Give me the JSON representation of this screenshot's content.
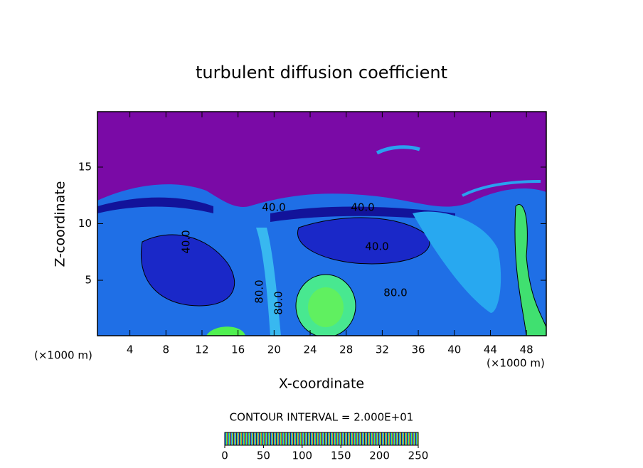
{
  "chart_data": {
    "type": "contour",
    "title": "turbulent diffusion coefficient",
    "x_label": "X-coordinate",
    "y_label": "Z-coordinate",
    "x_unit": "(×1000 m)",
    "y_unit": "(×1000 m)",
    "xlim": [
      0.4,
      50.2
    ],
    "xticks": [
      4,
      8,
      12,
      16,
      20,
      24,
      28,
      32,
      36,
      40,
      44,
      48
    ],
    "ylim": [
      0.1,
      19.9
    ],
    "yticks": [
      5,
      10,
      15
    ],
    "contour_interval_text": "CONTOUR INTERVAL = 2.000E+01",
    "contour_labels": [
      "40.0",
      "40.0",
      "40.0",
      "40.0",
      "80.0",
      "80.0",
      "80.0"
    ],
    "colorbar": {
      "lim": [
        0,
        250
      ],
      "ticks": [
        0,
        50,
        100,
        150,
        200,
        250
      ],
      "colors": [
        "#1a0050",
        "#1a1ab0",
        "#1e6ef0",
        "#20d0f0",
        "#30f060",
        "#a0f020",
        "#f0a020",
        "#e02020"
      ]
    }
  }
}
